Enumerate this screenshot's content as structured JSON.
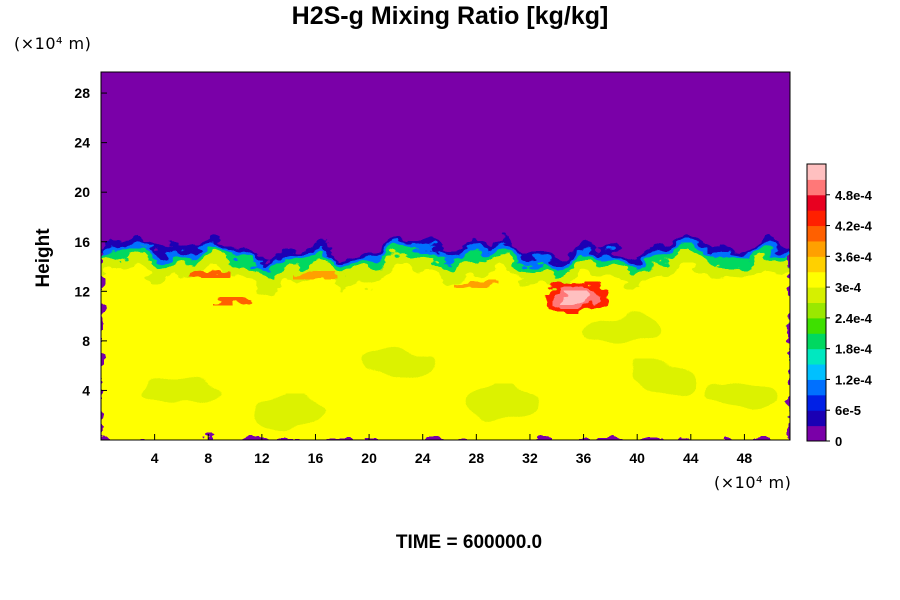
{
  "chart_data": {
    "type": "heatmap",
    "title": "H2S-g Mixing Ratio [kg/kg]",
    "xlabel": "",
    "ylabel": "Height",
    "x_scale_label": "(×10⁴ m)",
    "y_scale_label": "(×10⁴ m)",
    "xlim": [
      0,
      51.4
    ],
    "ylim": [
      0,
      29.7
    ],
    "x_ticks": [
      4,
      8,
      12,
      16,
      20,
      24,
      28,
      32,
      36,
      40,
      44,
      48
    ],
    "y_ticks": [
      4,
      8,
      12,
      16,
      20,
      24,
      28
    ],
    "colorbar": {
      "range": [
        0,
        0.00054
      ],
      "tick_values": [
        0,
        6e-05,
        0.00012,
        0.00018,
        0.00024,
        0.0003,
        0.00036,
        0.00042,
        0.00048
      ],
      "tick_labels": [
        "0",
        "6e-5",
        "1.2e-4",
        "1.8e-4",
        "2.4e-4",
        "3e-4",
        "3.6e-4",
        "4.2e-4",
        "4.8e-4"
      ],
      "colors": [
        "#7a00a8",
        "#1a00b4",
        "#0020e6",
        "#0070ff",
        "#00c0ff",
        "#00e8c0",
        "#00d860",
        "#3ee000",
        "#9ae800",
        "#d6f000",
        "#ffff00",
        "#ffd000",
        "#ffa000",
        "#ff6000",
        "#ff2000",
        "#e80020",
        "#ff7878",
        "#ffc0c0"
      ]
    },
    "field": {
      "background_value": 0,
      "boundary_height_range": [
        12.5,
        15.3
      ],
      "lower_layer_value": 0.00033,
      "interface_layer_value": 0.00028,
      "hotspot": {
        "x": 35.5,
        "y": 11.5,
        "peak_value": 0.00053
      }
    }
  },
  "footer": {
    "time_label": "TIME = 600000.0"
  }
}
